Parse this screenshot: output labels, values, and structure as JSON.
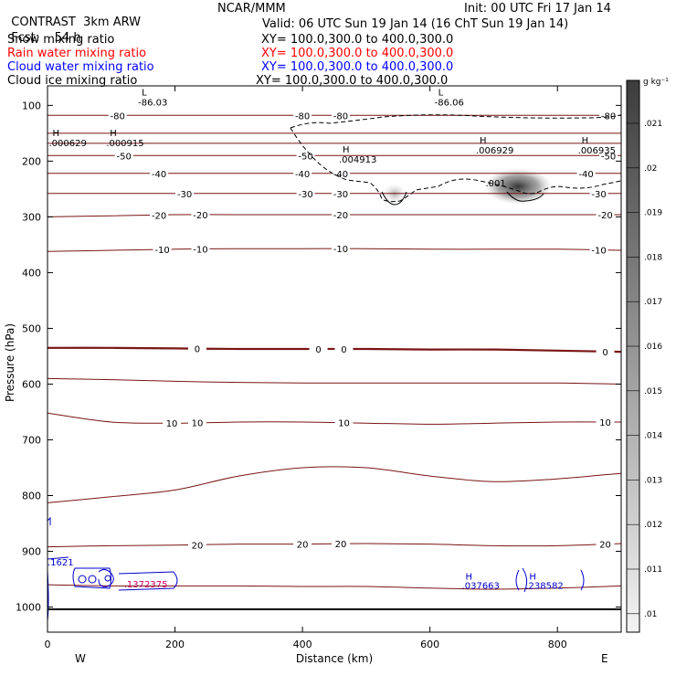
{
  "header": {
    "program": "CONTRAST",
    "model": "3km ARW",
    "center": "NCAR/MMM",
    "init": "Init: 00 UTC Fri 17 Jan 14",
    "fcst_label": "Fcst:",
    "fcst_value": "54 h",
    "valid": "Valid: 06 UTC Sun 19 Jan 14 (16 ChT Sun 19 Jan 14)"
  },
  "fields": [
    {
      "name": "Snow mixing ratio",
      "xy": "XY= 100.0,300.0 to 400.0,300.0",
      "color": "#000000"
    },
    {
      "name": "Rain water mixing ratio",
      "xy": "XY= 100.0,300.0 to 400.0,300.0",
      "color": "#ff0000"
    },
    {
      "name": "Cloud water mixing ratio",
      "xy": "XY= 100.0,300.0 to 400.0,300.0",
      "color": "#0000ff"
    },
    {
      "name": "Cloud ice mixing ratio",
      "xy": "XY= 100.0,300.0 to 400.0,300.0",
      "color": "#000000"
    }
  ],
  "chart_data": {
    "type": "contour cross-section",
    "xlabel": "Distance (km)",
    "ylabel": "Pressure (hPa)",
    "xlim": [
      0,
      900
    ],
    "ylim": [
      1045,
      65
    ],
    "x_ticks": [
      0,
      200,
      400,
      600,
      800
    ],
    "y_ticks": [
      100,
      200,
      300,
      400,
      500,
      600,
      700,
      800,
      900,
      1000
    ],
    "x_end_labels": {
      "left": "W",
      "right": "E"
    },
    "temperature_contours": [
      {
        "level": -80,
        "p": [
          118,
          118,
          118,
          118,
          118,
          118,
          118,
          118,
          118,
          118
        ],
        "labels": [
          {
            "x": 110,
            "text": "-80"
          },
          {
            "x": 400,
            "text": "-80"
          },
          {
            "x": 460,
            "text": "-80"
          },
          {
            "x": 880,
            "text": "-80"
          }
        ]
      },
      {
        "level": -70,
        "p": [
          150,
          150,
          150,
          150,
          150,
          150,
          150,
          150,
          150,
          150
        ],
        "labels": []
      },
      {
        "level": -60,
        "p": [
          168,
          168,
          168,
          168,
          168,
          168,
          168,
          168,
          168,
          168
        ],
        "labels": []
      },
      {
        "level": -50,
        "p": [
          190,
          190,
          190,
          190,
          190,
          190,
          190,
          190,
          190,
          190
        ],
        "labels": [
          {
            "x": 120,
            "text": "-50"
          },
          {
            "x": 405,
            "text": "-50"
          },
          {
            "x": 880,
            "text": "-50"
          }
        ]
      },
      {
        "level": -40,
        "p": [
          222,
          222,
          222,
          222,
          222,
          222,
          222,
          222,
          222,
          222
        ],
        "labels": [
          {
            "x": 175,
            "text": "-40"
          },
          {
            "x": 400,
            "text": "-40"
          },
          {
            "x": 460,
            "text": "-40"
          },
          {
            "x": 845,
            "text": "-40"
          }
        ]
      },
      {
        "level": -30,
        "p": [
          258,
          258,
          258,
          258,
          258,
          258,
          258,
          258,
          258,
          258
        ],
        "labels": [
          {
            "x": 215,
            "text": "-30"
          },
          {
            "x": 405,
            "text": "-30"
          },
          {
            "x": 460,
            "text": "-30"
          },
          {
            "x": 865,
            "text": "-30"
          }
        ]
      },
      {
        "level": -20,
        "p": [
          300,
          298,
          296,
          296,
          296,
          296,
          296,
          296,
          296,
          296
        ],
        "labels": [
          {
            "x": 175,
            "text": "-20"
          },
          {
            "x": 240,
            "text": "-20"
          },
          {
            "x": 460,
            "text": "-20"
          },
          {
            "x": 875,
            "text": "-20"
          }
        ]
      },
      {
        "level": -10,
        "p": [
          362,
          360,
          358,
          357,
          357,
          357,
          358,
          358,
          358,
          360
        ],
        "labels": [
          {
            "x": 180,
            "text": "-10"
          },
          {
            "x": 240,
            "text": "-10"
          },
          {
            "x": 460,
            "text": "-10"
          },
          {
            "x": 865,
            "text": "-10"
          }
        ]
      },
      {
        "level": 0,
        "p": [
          535,
          535,
          536,
          537,
          537,
          537,
          538,
          538,
          540,
          542
        ],
        "labels": [
          {
            "x": 235,
            "text": "0"
          },
          {
            "x": 425,
            "text": "0"
          },
          {
            "x": 465,
            "text": "0"
          },
          {
            "x": 875,
            "text": "0"
          }
        ]
      },
      {
        "level": 5,
        "p": [
          590,
          592,
          595,
          597,
          598,
          598,
          598,
          598,
          598,
          600
        ],
        "labels": []
      },
      {
        "level": 10,
        "p": [
          652,
          668,
          670,
          668,
          668,
          670,
          672,
          670,
          668,
          668
        ],
        "labels": [
          {
            "x": 195,
            "text": "10"
          },
          {
            "x": 235,
            "text": "10"
          },
          {
            "x": 465,
            "text": "10"
          },
          {
            "x": 875,
            "text": "10"
          }
        ]
      },
      {
        "level": 15,
        "p": [
          813,
          802,
          790,
          765,
          750,
          750,
          765,
          775,
          770,
          760
        ],
        "labels": []
      },
      {
        "level": 20,
        "p": [
          892,
          890,
          889,
          887,
          887,
          886,
          887,
          890,
          890,
          886
        ],
        "labels": [
          {
            "x": 235,
            "text": "20"
          },
          {
            "x": 400,
            "text": "20"
          },
          {
            "x": 460,
            "text": "20"
          },
          {
            "x": 875,
            "text": "20"
          }
        ]
      },
      {
        "level": 25,
        "p": [
          960,
          962,
          962,
          962,
          963,
          963,
          966,
          968,
          966,
          962
        ],
        "labels": []
      }
    ],
    "extrema": [
      {
        "x": 145,
        "p": 82,
        "mark": "L",
        "value": "-86.03"
      },
      {
        "x": 610,
        "p": 82,
        "mark": "L",
        "value": "-86.06"
      },
      {
        "x": 5,
        "p": 155,
        "mark": "H",
        "value": ".000629"
      },
      {
        "x": 95,
        "p": 155,
        "mark": "H",
        "value": ".000915"
      },
      {
        "x": 460,
        "p": 185,
        "mark": "H",
        "value": ".004913"
      },
      {
        "x": 675,
        "p": 168,
        "mark": "H",
        "value": ".006929"
      },
      {
        "x": 835,
        "p": 168,
        "mark": "H",
        "value": ".006935"
      },
      {
        "x": 690,
        "p": 245,
        "mark": "",
        "value": ".001"
      }
    ],
    "ice_contour_value": 0.001,
    "cloud_water_labels": [
      {
        "x": 0,
        "p": 925,
        "value": ".1621"
      },
      {
        "x": 120,
        "p": 965,
        "value": ".1372375"
      },
      {
        "x": 650,
        "p": 967,
        "value": ".037663"
      },
      {
        "x": 750,
        "p": 967,
        "value": ".238582"
      }
    ],
    "colorbar": {
      "unit": "g kg⁻¹",
      "ticks": [
        ".021",
        ".02",
        ".019",
        ".018",
        ".017",
        ".016",
        ".015",
        ".014",
        ".013",
        ".012",
        ".011",
        ".01"
      ]
    }
  }
}
